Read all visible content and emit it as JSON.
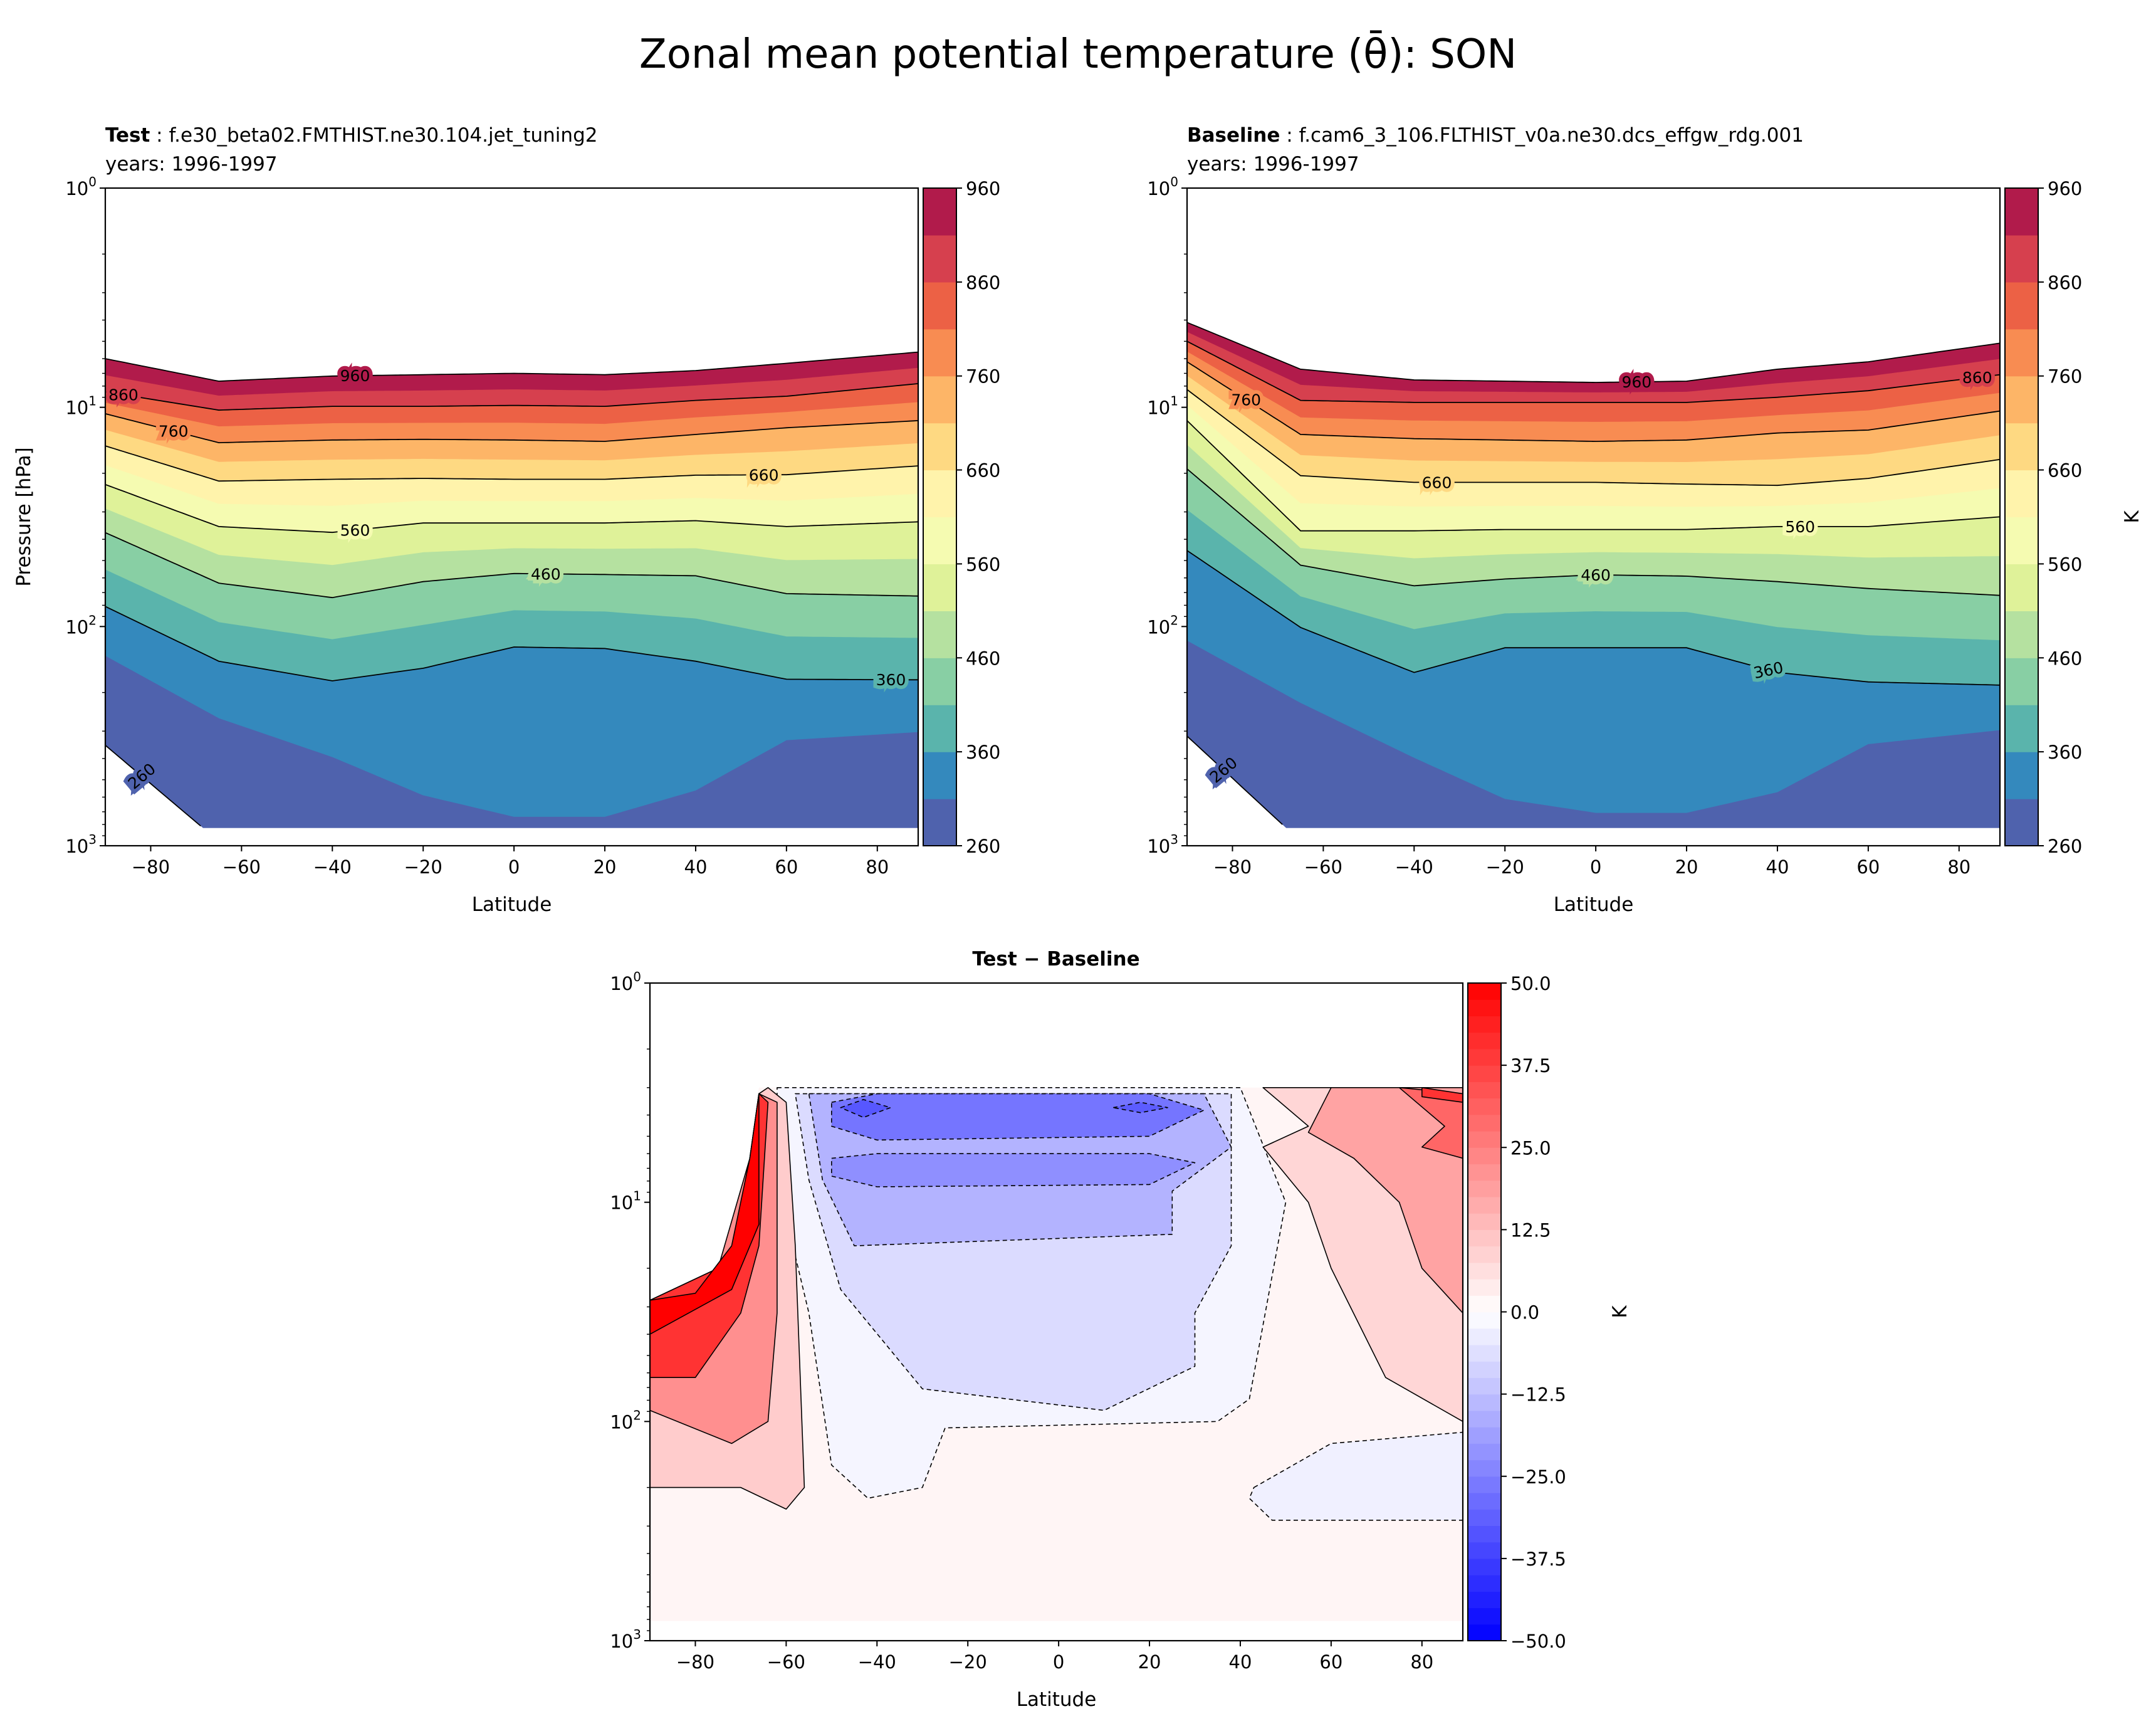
{
  "figure": {
    "title": "Zonal mean potential temperature (θ̄): SON"
  },
  "chart_data": [
    {
      "type": "contour",
      "title_bold": "Test",
      "title_sep": " : ",
      "title_case": "f.e30_beta02.FMTHIST.ne30.104.jet_tuning2",
      "subtitle": "years: 1996-1997",
      "xlabel": "Latitude",
      "ylabel": "Pressure [hPa]",
      "xlim": [
        -90,
        89
      ],
      "ylim": [
        1000,
        1
      ],
      "yscale": "log",
      "x_ticks": [
        -80,
        -60,
        -40,
        -20,
        0,
        20,
        40,
        60,
        80
      ],
      "x_tick_labels": [
        "−80",
        "−60",
        "−40",
        "−20",
        "0",
        "20",
        "40",
        "60",
        "80"
      ],
      "y_tick_labels": [
        {
          "base": "10",
          "exp": "0"
        },
        {
          "base": "10",
          "exp": "1"
        },
        {
          "base": "10",
          "exp": "2"
        },
        {
          "base": "10",
          "exp": "3"
        }
      ],
      "colormap": "Spectral_r",
      "colorbar": {
        "levels": [
          260,
          310,
          360,
          410,
          460,
          510,
          560,
          610,
          660,
          710,
          760,
          810,
          860,
          910,
          960
        ],
        "ticks": [
          260,
          360,
          460,
          560,
          660,
          760,
          860,
          960
        ],
        "tick_labels": [
          "260",
          "360",
          "460",
          "560",
          "660",
          "760",
          "860",
          "960"
        ],
        "label": "",
        "band_colors": [
          "#4f62ad",
          "#3489bd",
          "#5ab4ac",
          "#88cfa4",
          "#b5e1a0",
          "#dff299",
          "#f5fbb1",
          "#fff3ab",
          "#fed982",
          "#fdb567",
          "#f88c52",
          "#ec6145",
          "#d6404e",
          "#b11b4b"
        ]
      },
      "isolines_hPa": {
        "lats": [
          -90,
          -65,
          -40,
          -20,
          0,
          20,
          40,
          60,
          89
        ],
        "260": [
          348,
          955,
          955,
          955,
          955,
          955,
          955,
          955,
          955
        ],
        "310": [
          136,
          262,
          394,
          589,
          738,
          738,
          560,
          330,
          303
        ],
        "360": [
          81,
          144,
          177,
          155,
          124,
          126,
          144,
          174,
          175
        ],
        "460": [
          37.3,
          63.4,
          73.8,
          62.4,
          57.3,
          57.9,
          58.7,
          70.8,
          72.6
        ],
        "560": [
          22.5,
          35.0,
          37.2,
          33.7,
          33.7,
          33.7,
          32.9,
          35.0,
          33.3
        ],
        "660": [
          15.0,
          21.7,
          21.3,
          21.1,
          21.3,
          21.3,
          20.4,
          20.3,
          18.5
        ],
        "760": [
          10.7,
          14.5,
          14.1,
          14.0,
          14.1,
          14.3,
          13.3,
          12.4,
          11.5
        ],
        "860": [
          8.5,
          10.3,
          9.9,
          9.9,
          9.8,
          9.9,
          9.3,
          8.9,
          7.8
        ],
        "960": [
          6.0,
          7.6,
          7.2,
          7.1,
          7.0,
          7.1,
          6.8,
          6.3,
          5.6
        ]
      },
      "contour_labels": [
        "960",
        "860",
        "760",
        "660",
        "560",
        "460",
        "360",
        "260"
      ]
    },
    {
      "type": "contour",
      "title_bold": "Baseline",
      "title_sep": " : ",
      "title_case": "f.cam6_3_106.FLTHIST_v0a.ne30.dcs_effgw_rdg.001",
      "subtitle": "years: 1996-1997",
      "xlabel": "Latitude",
      "ylabel": "",
      "xlim": [
        -90,
        89
      ],
      "ylim": [
        1000,
        1
      ],
      "yscale": "log",
      "x_ticks": [
        -80,
        -60,
        -40,
        -20,
        0,
        20,
        40,
        60,
        80
      ],
      "x_tick_labels": [
        "−80",
        "−60",
        "−40",
        "−20",
        "0",
        "20",
        "40",
        "60",
        "80"
      ],
      "y_tick_labels": [
        {
          "base": "10",
          "exp": "0"
        },
        {
          "base": "10",
          "exp": "1"
        },
        {
          "base": "10",
          "exp": "2"
        },
        {
          "base": "10",
          "exp": "3"
        }
      ],
      "colormap": "Spectral_r",
      "colorbar": {
        "levels": [
          260,
          310,
          360,
          410,
          460,
          510,
          560,
          610,
          660,
          710,
          760,
          810,
          860,
          910,
          960
        ],
        "ticks": [
          260,
          360,
          460,
          560,
          660,
          760,
          860,
          960
        ],
        "tick_labels": [
          "260",
          "360",
          "460",
          "560",
          "660",
          "760",
          "860",
          "960"
        ],
        "label": "K",
        "band_colors": [
          "#4f62ad",
          "#3489bd",
          "#5ab4ac",
          "#88cfa4",
          "#b5e1a0",
          "#dff299",
          "#f5fbb1",
          "#fff3ab",
          "#fed982",
          "#fdb567",
          "#f88c52",
          "#ec6145",
          "#d6404e",
          "#b11b4b"
        ]
      },
      "isolines_hPa": {
        "lats": [
          -90,
          -65,
          -40,
          -20,
          0,
          20,
          40,
          60,
          89
        ],
        "260": [
          316,
          955,
          955,
          955,
          955,
          955,
          955,
          955,
          955
        ],
        "310": [
          116,
          223,
          397,
          612,
          708,
          708,
          570,
          344,
          297
        ],
        "360": [
          45,
          101,
          162,
          125,
          125,
          125,
          162,
          179,
          185
        ],
        "460": [
          19.1,
          52.5,
          65.2,
          60.7,
          58.1,
          58.9,
          62.4,
          67.1,
          72.1
        ],
        "560": [
          11.5,
          36.6,
          36.6,
          36.1,
          36.1,
          36.1,
          35.0,
          35.0,
          31.6
        ],
        "660": [
          8.3,
          20.5,
          22.0,
          22.0,
          22.0,
          22.4,
          22.7,
          21.1,
          17.3
        ],
        "760": [
          6.2,
          13.3,
          13.9,
          14.1,
          14.3,
          14.1,
          13.1,
          12.7,
          10.4
        ],
        "860": [
          5.0,
          9.3,
          9.5,
          9.5,
          9.5,
          9.5,
          9.0,
          8.4,
          7.1
        ],
        "960": [
          4.1,
          6.7,
          7.5,
          7.6,
          7.7,
          7.6,
          6.7,
          6.2,
          5.1
        ]
      },
      "contour_labels": [
        "960",
        "860",
        "760",
        "660",
        "560",
        "460",
        "360",
        "260"
      ]
    },
    {
      "type": "contour",
      "title_bold": "Test − Baseline",
      "xlabel": "Latitude",
      "ylabel": "",
      "xlim": [
        -90,
        89
      ],
      "ylim": [
        1000,
        1
      ],
      "yscale": "log",
      "x_ticks": [
        -80,
        -60,
        -40,
        -20,
        0,
        20,
        40,
        60,
        80
      ],
      "x_tick_labels": [
        "−80",
        "−60",
        "−40",
        "−20",
        "0",
        "20",
        "40",
        "60",
        "80"
      ],
      "y_tick_labels": [
        {
          "base": "10",
          "exp": "0"
        },
        {
          "base": "10",
          "exp": "1"
        },
        {
          "base": "10",
          "exp": "2"
        },
        {
          "base": "10",
          "exp": "3"
        }
      ],
      "colormap": "bwr",
      "colorbar": {
        "range": [
          -50,
          50
        ],
        "level_step": 2.5,
        "ticks": [
          50,
          37.5,
          25,
          12.5,
          0,
          -12.5,
          -25,
          -37.5,
          -50
        ],
        "tick_labels": [
          "50.0",
          "37.5",
          "25.0",
          "12.5",
          "0.0",
          "−12.5",
          "−25.0",
          "−37.5",
          "−50.0"
        ],
        "label": "K"
      },
      "regions_K": [
        {
          "value": 2,
          "outline": false,
          "points_lat_hPa": [
            [
              -66,
              3.0
            ],
            [
              89,
              3.0
            ],
            [
              89,
              813
            ],
            [
              -90,
              813
            ],
            [
              -90,
              28
            ],
            [
              -75,
              20
            ],
            [
              -70,
              14
            ],
            [
              -68,
              6.3
            ]
          ]
        },
        {
          "value": -2,
          "outline": true,
          "points_lat_hPa": [
            [
              -62,
              3.0
            ],
            [
              40,
              3.0
            ],
            [
              50,
              10
            ],
            [
              42,
              79
            ],
            [
              35,
              100
            ],
            [
              -25,
              107
            ],
            [
              -30,
              200
            ],
            [
              -42,
              224
            ],
            [
              -50,
              158
            ],
            [
              -55,
              32
            ],
            [
              -62,
              7.9
            ]
          ]
        },
        {
          "value": -7,
          "outline": true,
          "points_lat_hPa": [
            [
              -58,
              3.2
            ],
            [
              38,
              3.2
            ],
            [
              38,
              15.8
            ],
            [
              30,
              32
            ],
            [
              30,
              56
            ],
            [
              10,
              89
            ],
            [
              -30,
              71
            ],
            [
              -48,
              25
            ],
            [
              -55,
              7.9
            ]
          ]
        },
        {
          "value": -15,
          "outline": true,
          "points_lat_hPa": [
            [
              -55,
              3.2
            ],
            [
              32,
              3.2
            ],
            [
              38,
              5.6
            ],
            [
              25,
              8.9
            ],
            [
              25,
              14
            ],
            [
              -45,
              15.8
            ],
            [
              -52,
              7.9
            ]
          ]
        },
        {
          "value": -22,
          "outline": true,
          "points_lat_hPa": [
            [
              -50,
              6.3
            ],
            [
              -40,
              6.0
            ],
            [
              20,
              6.0
            ],
            [
              30,
              6.6
            ],
            [
              20,
              8.3
            ],
            [
              -40,
              8.5
            ],
            [
              -50,
              7.6
            ]
          ]
        },
        {
          "value": -27,
          "outline": true,
          "points_lat_hPa": [
            [
              -50,
              3.5
            ],
            [
              -40,
              3.2
            ],
            [
              20,
              3.2
            ],
            [
              32,
              3.8
            ],
            [
              20,
              5.0
            ],
            [
              -40,
              5.2
            ],
            [
              -50,
              4.5
            ]
          ]
        },
        {
          "value": -33,
          "outline": true,
          "points_lat_hPa": [
            [
              -48,
              3.7
            ],
            [
              -43,
              3.4
            ],
            [
              -37,
              3.7
            ],
            [
              -43,
              4.1
            ]
          ]
        },
        {
          "value": -32,
          "outline": true,
          "points_lat_hPa": [
            [
              12,
              3.7
            ],
            [
              18,
              3.5
            ],
            [
              24,
              3.7
            ],
            [
              18,
              3.9
            ]
          ]
        },
        {
          "value": 10,
          "outline": true,
          "points_lat_hPa": [
            [
              -90,
              28
            ],
            [
              -82,
              28
            ],
            [
              -75,
              20
            ],
            [
              -70,
              14
            ],
            [
              -68,
              6.3
            ],
            [
              -66,
              3.2
            ],
            [
              -64,
              3.0
            ],
            [
              -60,
              3.5
            ],
            [
              -58,
              15.8
            ],
            [
              -56,
              200
            ],
            [
              -60,
              251
            ],
            [
              -70,
              200
            ],
            [
              -90,
              200
            ]
          ]
        },
        {
          "value": 22,
          "outline": true,
          "points_lat_hPa": [
            [
              -90,
              28
            ],
            [
              -75,
              20
            ],
            [
              -68,
              6.3
            ],
            [
              -66,
              3.2
            ],
            [
              -62,
              3.5
            ],
            [
              -62,
              32
            ],
            [
              -64,
              100
            ],
            [
              -72,
              126
            ],
            [
              -90,
              89
            ]
          ]
        },
        {
          "value": 40,
          "outline": true,
          "points_lat_hPa": [
            [
              -90,
              28
            ],
            [
              -75,
              20
            ],
            [
              -70,
              14
            ],
            [
              -68,
              6.3
            ],
            [
              -66,
              3.2
            ],
            [
              -64,
              3.5
            ],
            [
              -66,
              15.8
            ],
            [
              -70,
              32
            ],
            [
              -80,
              63
            ],
            [
              -90,
              63
            ]
          ]
        },
        {
          "value": 50,
          "outline": true,
          "points_lat_hPa": [
            [
              -90,
              28
            ],
            [
              -80,
              26
            ],
            [
              -72,
              15.8
            ],
            [
              -68,
              6.3
            ],
            [
              -66,
              3.2
            ],
            [
              -66,
              12.6
            ],
            [
              -72,
              25
            ],
            [
              -90,
              40
            ]
          ]
        },
        {
          "value": 8,
          "outline": true,
          "points_lat_hPa": [
            [
              45,
              3.0
            ],
            [
              89,
              3.0
            ],
            [
              89,
              100
            ],
            [
              72,
              63
            ],
            [
              60,
              20
            ],
            [
              55,
              10
            ],
            [
              45,
              5.6
            ],
            [
              55,
              4.5
            ]
          ]
        },
        {
          "value": 18,
          "outline": true,
          "points_lat_hPa": [
            [
              60,
              3.0
            ],
            [
              89,
              3.0
            ],
            [
              89,
              32
            ],
            [
              80,
              20
            ],
            [
              75,
              10
            ],
            [
              65,
              6.3
            ],
            [
              55,
              4.8
            ]
          ]
        },
        {
          "value": 30,
          "outline": true,
          "points_lat_hPa": [
            [
              75,
              3.0
            ],
            [
              89,
              3.2
            ],
            [
              89,
              6.3
            ],
            [
              80,
              5.6
            ],
            [
              85,
              4.5
            ]
          ]
        },
        {
          "value": 40,
          "outline": true,
          "points_lat_hPa": [
            [
              80,
              3.0
            ],
            [
              89,
              3.2
            ],
            [
              89,
              3.5
            ],
            [
              80,
              3.3
            ]
          ]
        },
        {
          "value": -3,
          "outline": true,
          "points_lat_hPa": [
            [
              43,
              200
            ],
            [
              60,
              126
            ],
            [
              89,
              112
            ],
            [
              89,
              282
            ],
            [
              47,
              282
            ],
            [
              42,
              224
            ]
          ]
        }
      ]
    }
  ]
}
